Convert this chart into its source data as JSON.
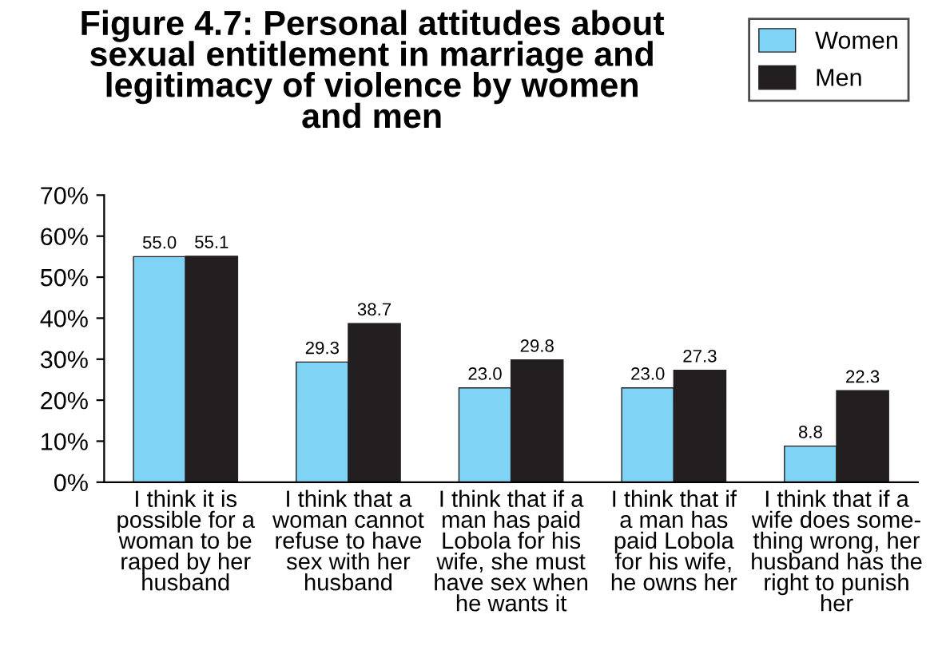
{
  "chart_data": {
    "type": "bar",
    "title": "Figure 4.7: Personal attitudes about\nsexual entitlement in marriage and\nlegitimacy of violence by women\nand men",
    "categories": [
      "I think it is\npossible for a\nwoman to be\nraped by her\nhusband",
      "I think that a\nwoman cannot\nrefuse to have\nsex with her\nhusband",
      "I think that if a\nman has paid\nLobola for his\nwife, she must\nhave sex when\nhe wants it",
      "I think that if\na man has\npaid Lobola\nfor his wife,\nhe owns her",
      "I think that if a\nwife does some-\nthing wrong, her\nhusband has the\nright to punish\nher"
    ],
    "series": [
      {
        "name": "Women",
        "color": "#7fd4f6",
        "values": [
          55.0,
          29.3,
          23.0,
          23.0,
          8.8
        ],
        "value_labels": [
          "55.0",
          "29.3",
          "23.0",
          "23.0",
          "8.8"
        ]
      },
      {
        "name": "Men",
        "color": "#231f20",
        "values": [
          55.1,
          38.7,
          29.8,
          27.3,
          22.3
        ],
        "value_labels": [
          "55.1",
          "38.7",
          "29.8",
          "27.3",
          "22.3"
        ]
      }
    ],
    "ylim": [
      0,
      70
    ],
    "yticks": [
      {
        "value": 0,
        "label": "0%"
      },
      {
        "value": 10,
        "label": "10%"
      },
      {
        "value": 20,
        "label": "20%"
      },
      {
        "value": 30,
        "label": "30%"
      },
      {
        "value": 40,
        "label": "40%"
      },
      {
        "value": 50,
        "label": "50%"
      },
      {
        "value": 60,
        "label": "60%"
      },
      {
        "value": 70,
        "label": "70%"
      }
    ],
    "grid": false,
    "legend": "top right"
  }
}
